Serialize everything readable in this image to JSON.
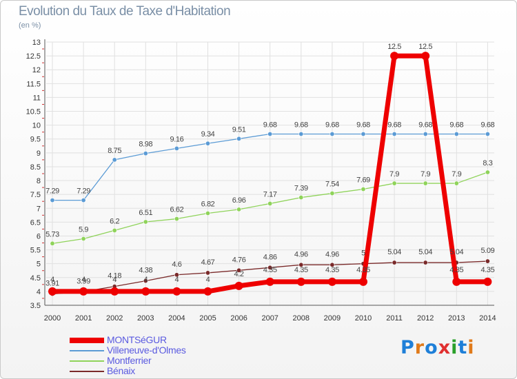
{
  "header": {
    "title": "Evolution du Taux de Taxe d'Habitation",
    "subtitle": "(en %)"
  },
  "logo": {
    "text": "Proxiti",
    "letter_colors": [
      "#1e7fd8",
      "#e07a1a",
      "#1e7fd8",
      "#e03030",
      "#2aa02a",
      "#1e7fd8",
      "#e07a1a"
    ]
  },
  "colors": {
    "grid": "#e0e0e0",
    "axis": "#555555",
    "tick_red": "#d03030"
  },
  "chart_data": {
    "type": "line",
    "x": [
      "2000",
      "2001",
      "2002",
      "2003",
      "2004",
      "2005",
      "2006",
      "2007",
      "2008",
      "2009",
      "2010",
      "2011",
      "2012",
      "2013",
      "2014"
    ],
    "ylim": [
      3.5,
      13
    ],
    "yticks": [
      "3.5",
      "4",
      "4.5",
      "5",
      "5.5",
      "6",
      "6.5",
      "7",
      "7.5",
      "8",
      "8.5",
      "9",
      "9.5",
      "10",
      "10.5",
      "11",
      "11.5",
      "12",
      "12.5",
      "13"
    ],
    "grid": true,
    "legend_position": "bottom-left",
    "series": [
      {
        "name": "MONTSéGUR",
        "color": "#ee0000",
        "values": [
          4,
          4,
          4,
          4,
          4,
          4,
          4.2,
          4.35,
          4.35,
          4.35,
          4.35,
          12.5,
          12.5,
          4.35,
          4.35
        ],
        "labels": [
          "4",
          "4",
          "4",
          "4",
          "4",
          "4",
          "4.2",
          "4.35",
          "4.35",
          "4.35",
          "4.35",
          "12.5",
          "12.5",
          "4.35",
          "4.35"
        ]
      },
      {
        "name": "Villeneuve-d'Olmes",
        "color": "#5b9bd5",
        "values": [
          7.29,
          7.29,
          8.75,
          8.98,
          9.16,
          9.34,
          9.51,
          9.68,
          9.68,
          9.68,
          9.68,
          9.68,
          9.68,
          9.68,
          9.68
        ],
        "labels": [
          "7.29",
          "7.29",
          "8.75",
          "8.98",
          "9.16",
          "9.34",
          "9.51",
          "9.68",
          "9.68",
          "9.68",
          "9.68",
          "9.68",
          "9.68",
          "9.68",
          "9.68"
        ]
      },
      {
        "name": "Montferrier",
        "color": "#8fd35a",
        "values": [
          5.73,
          5.9,
          6.2,
          6.51,
          6.62,
          6.82,
          6.96,
          7.17,
          7.39,
          7.54,
          7.69,
          7.9,
          7.9,
          7.9,
          8.3
        ],
        "labels": [
          "5.73",
          "5.9",
          "6.2",
          "6.51",
          "6.62",
          "6.82",
          "6.96",
          "7.17",
          "7.39",
          "7.54",
          "7.69",
          "7.9",
          "7.9",
          "7.9",
          "8.3"
        ]
      },
      {
        "name": "Bénaix",
        "color": "#7a2a2a",
        "values": [
          3.91,
          3.99,
          4.18,
          4.38,
          4.6,
          4.67,
          4.76,
          4.86,
          4.96,
          4.96,
          5,
          5.04,
          5.04,
          5.04,
          5.09
        ],
        "labels": [
          "3.91",
          "3.99",
          "4.18",
          "4.38",
          "4.6",
          "4.67",
          "4.76",
          "4.86",
          "4.96",
          "4.96",
          "5",
          "5.04",
          "5.04",
          "5.04",
          "5.09"
        ]
      }
    ]
  }
}
